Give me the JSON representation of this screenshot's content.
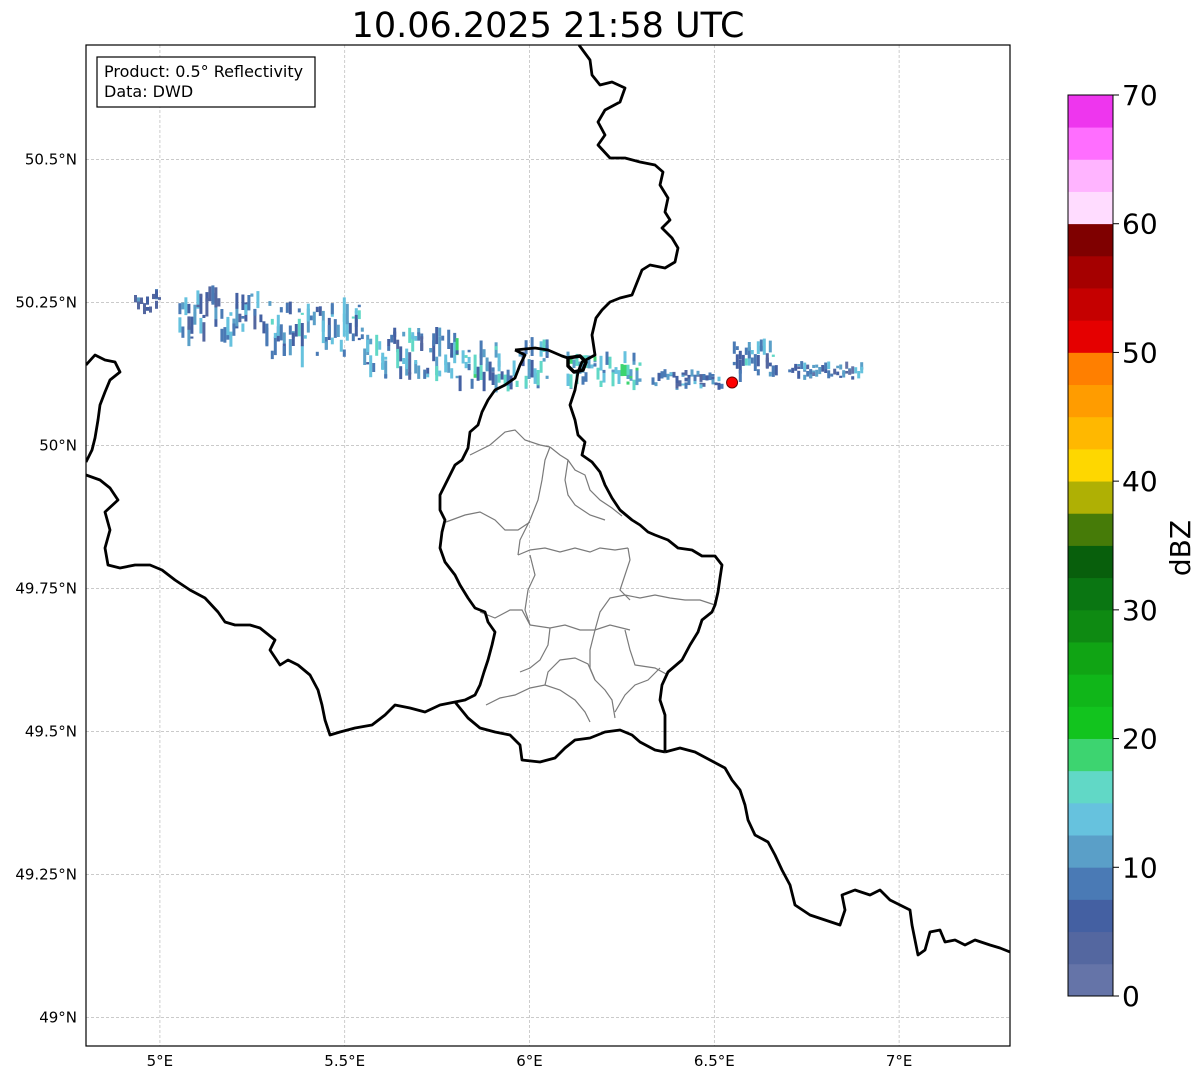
{
  "title": "10.06.2025 21:58 UTC",
  "info": {
    "product_line": "Product: 0.5° Reflectivity",
    "data_line": "Data: DWD"
  },
  "map": {
    "lon_range": [
      4.8,
      7.3
    ],
    "lat_range": [
      48.95,
      50.7
    ],
    "lon_ticks": [
      {
        "value": 5.0,
        "label": "5°E"
      },
      {
        "value": 5.5,
        "label": "5.5°E"
      },
      {
        "value": 6.0,
        "label": "6°E"
      },
      {
        "value": 6.5,
        "label": "6.5°E"
      },
      {
        "value": 7.0,
        "label": "7°E"
      }
    ],
    "lat_ticks": [
      {
        "value": 50.5,
        "label": "50.5°N"
      },
      {
        "value": 50.25,
        "label": "50.25°N"
      },
      {
        "value": 50.0,
        "label": "50°N"
      },
      {
        "value": 49.75,
        "label": "49.75°N"
      },
      {
        "value": 49.5,
        "label": "49.5°N"
      },
      {
        "value": 49.25,
        "label": "49.25°N"
      },
      {
        "value": 49.0,
        "label": "49°N"
      }
    ],
    "grid": true,
    "radar_site": {
      "lon": 6.548,
      "lat": 50.11,
      "color": "#ff0000"
    },
    "precip_bands": [
      {
        "lon_start": 4.93,
        "lon_end": 5.0,
        "lat_center": 50.255,
        "half_width": 0.018,
        "dbz": 8
      },
      {
        "lon_start": 5.05,
        "lon_end": 5.3,
        "lat_center": 50.225,
        "half_width": 0.04,
        "dbz": 9
      },
      {
        "lon_start": 5.3,
        "lon_end": 5.55,
        "lat_center": 50.2,
        "half_width": 0.045,
        "dbz": 11
      },
      {
        "lon_start": 5.55,
        "lon_end": 5.8,
        "lat_center": 50.16,
        "half_width": 0.04,
        "dbz": 10
      },
      {
        "lon_start": 5.8,
        "lon_end": 6.05,
        "lat_center": 50.14,
        "half_width": 0.035,
        "dbz": 12
      },
      {
        "lon_start": 6.1,
        "lon_end": 6.3,
        "lat_center": 50.13,
        "half_width": 0.025,
        "dbz": 14
      },
      {
        "lon_start": 6.33,
        "lon_end": 6.52,
        "lat_center": 50.115,
        "half_width": 0.012,
        "dbz": 9
      },
      {
        "lon_start": 6.55,
        "lon_end": 6.67,
        "lat_center": 50.15,
        "half_width": 0.03,
        "dbz": 10
      },
      {
        "lon_start": 6.7,
        "lon_end": 6.9,
        "lat_center": 50.13,
        "half_width": 0.012,
        "dbz": 8
      }
    ]
  },
  "colorbar": {
    "label": "dBZ",
    "min": 0,
    "max": 70,
    "tick_labels": [
      "0",
      "10",
      "20",
      "30",
      "40",
      "50",
      "60",
      "70"
    ],
    "colors": [
      "#6574a8",
      "#5467a0",
      "#4460a2",
      "#4a7ab5",
      "#5a9fc8",
      "#66c2de",
      "#61d8c6",
      "#3dd470",
      "#12c41e",
      "#10b619",
      "#10a414",
      "#0e8a12",
      "#0a7612",
      "#085f0c",
      "#467b08",
      "#afb004",
      "#fed700",
      "#ffb800",
      "#ff9c00",
      "#ff7f00",
      "#e50000",
      "#c50000",
      "#a50000",
      "#7f0000",
      "#ffdcff",
      "#ffb4ff",
      "#ff6eff",
      "#ee36ee"
    ]
  }
}
